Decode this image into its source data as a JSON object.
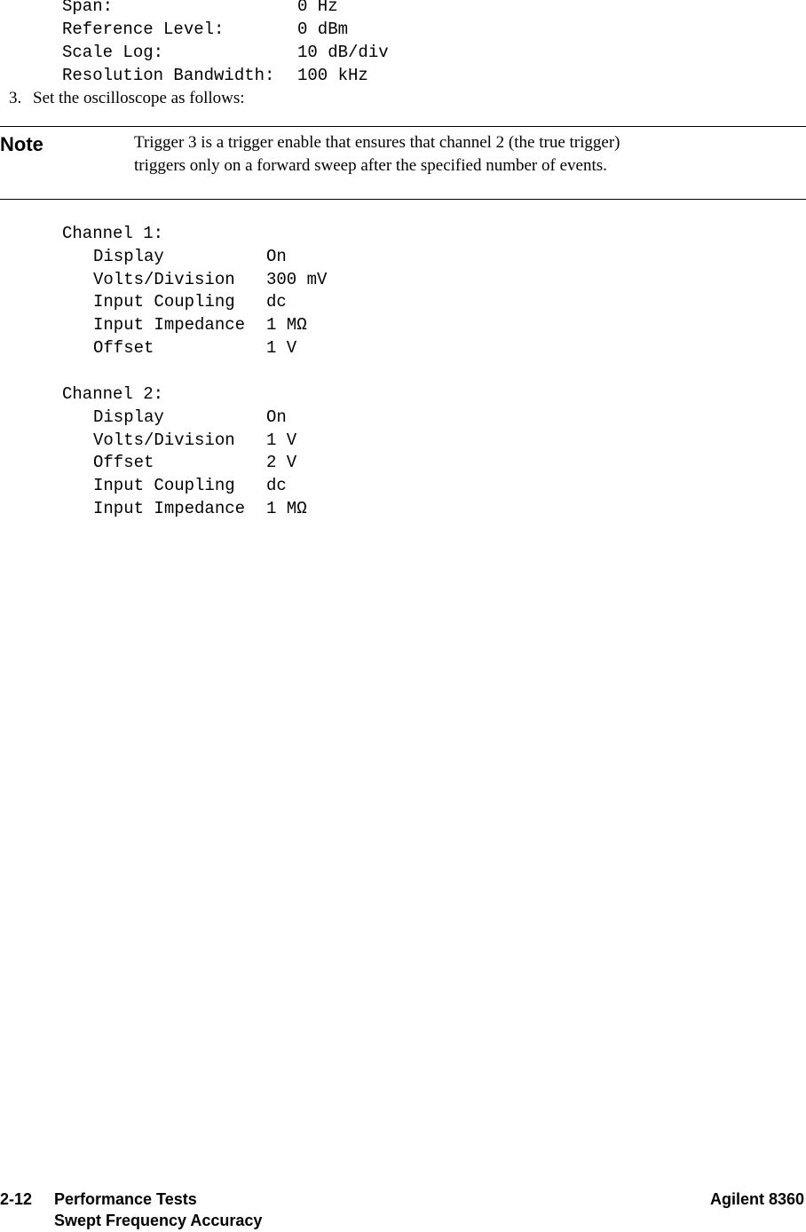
{
  "settings": [
    [
      "Span:",
      "0 Hz"
    ],
    [
      "Reference Level:",
      "0 dBm"
    ],
    [
      "Scale Log:",
      "10 dB/div"
    ],
    [
      "Resolution Bandwidth:",
      "100 kHz"
    ]
  ],
  "step": {
    "number": "3.",
    "text": "Set the oscilloscope as follows:"
  },
  "note": {
    "label": "Note",
    "lines": [
      "Trigger 3 is a trigger enable that ensures that channel 2 (the true trigger)",
      "triggers only on a forward sweep after the specified number of events."
    ]
  },
  "channels": [
    {
      "title": "Channel 1:",
      "rows": [
        [
          "Display",
          "On"
        ],
        [
          "Volts/Division",
          "300 mV"
        ],
        [
          "Input Coupling",
          "dc"
        ],
        [
          "Input Impedance",
          "1 MΩ"
        ],
        [
          "Offset",
          "1 V"
        ]
      ]
    },
    {
      "title": "Channel 2:",
      "rows": [
        [
          "Display",
          "On"
        ],
        [
          "Volts/Division",
          "1 V"
        ],
        [
          "Offset",
          "2 V"
        ],
        [
          "Input Coupling",
          "dc"
        ],
        [
          "Input Impedance",
          "1 MΩ"
        ]
      ]
    }
  ],
  "footer": {
    "page": "2-12",
    "section": "Performance Tests",
    "subsection": "Swept Frequency Accuracy",
    "product": "Agilent 8360"
  }
}
